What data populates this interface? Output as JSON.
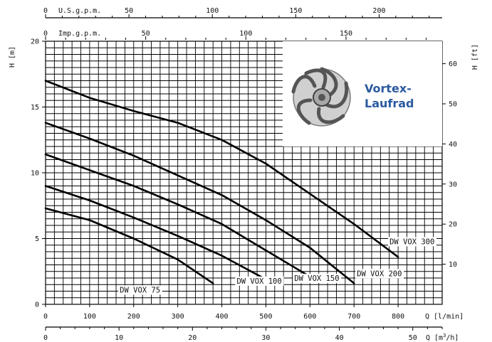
{
  "chart_data": {
    "type": "line",
    "title": "",
    "y_label_left": "H [m]",
    "y_label_right": "H [ft]",
    "x_label_lpm": "Q [l/min]",
    "x_label_m3h": "Q [m3/h]",
    "x_label_m3h_base": "Q [m",
    "x_label_m3h_sup": "3",
    "x_label_m3h_end": "/h]",
    "x_label_usgpm": "U.S.g.p.m.",
    "x_label_impgpm": "Imp.g.p.m.",
    "xlim_lpm": [
      0,
      900
    ],
    "ylim_m": [
      0,
      20
    ],
    "ylim_ft": [
      0,
      65.6
    ],
    "xlim_m3h": [
      0,
      54
    ],
    "xlim_usgpm": [
      0,
      237.8
    ],
    "xlim_impgpm": [
      0,
      198
    ],
    "ticks_lpm": [
      0,
      100,
      200,
      300,
      400,
      500,
      600,
      700,
      800
    ],
    "ticks_m": [
      0,
      5,
      10,
      15,
      20
    ],
    "ticks_ft": [
      10,
      20,
      30,
      40,
      50,
      60
    ],
    "ticks_m3h": [
      0,
      10,
      20,
      30,
      40,
      50
    ],
    "ticks_usgpm": [
      0,
      50,
      100,
      150,
      200
    ],
    "ticks_impgpm": [
      0,
      50,
      100,
      150
    ],
    "grid": true,
    "series": [
      {
        "name": "DW VOX 75",
        "x": [
          0,
          100,
          200,
          300,
          380
        ],
        "y": [
          7.3,
          6.4,
          5.0,
          3.4,
          1.6
        ]
      },
      {
        "name": "DW VOX 100",
        "x": [
          0,
          100,
          200,
          300,
          400,
          500
        ],
        "y": [
          9.0,
          7.9,
          6.6,
          5.2,
          3.7,
          1.9
        ]
      },
      {
        "name": "DW VOX 150",
        "x": [
          0,
          100,
          200,
          300,
          400,
          500,
          600
        ],
        "y": [
          11.4,
          10.2,
          9.0,
          7.6,
          6.1,
          4.1,
          2.1
        ]
      },
      {
        "name": "DW VOX 200",
        "x": [
          0,
          100,
          200,
          300,
          400,
          500,
          600,
          700
        ],
        "y": [
          13.8,
          12.6,
          11.3,
          9.8,
          8.3,
          6.4,
          4.3,
          1.6
        ]
      },
      {
        "name": "DW VOX 300",
        "x": [
          0,
          100,
          200,
          300,
          400,
          500,
          600,
          700,
          800
        ],
        "y": [
          17.0,
          15.7,
          14.7,
          13.8,
          12.5,
          10.7,
          8.4,
          6.1,
          3.6
        ]
      }
    ],
    "inset": {
      "text_line1": "Vortex-",
      "text_line2": "Laufrad",
      "text_color": "#2b5aa0"
    }
  }
}
